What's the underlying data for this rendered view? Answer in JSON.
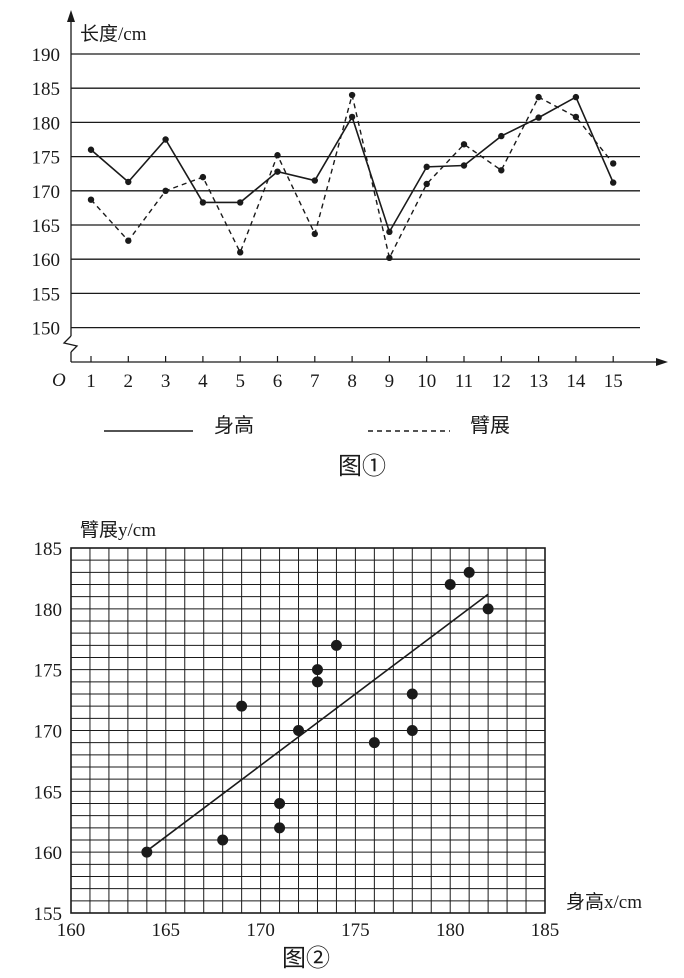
{
  "chart_data": [
    {
      "type": "line",
      "caption": "图①",
      "ylabel": "长度/cm",
      "origin_label": "O",
      "xlabel": "",
      "x": [
        1,
        2,
        3,
        4,
        5,
        6,
        7,
        8,
        9,
        10,
        11,
        12,
        13,
        14,
        15
      ],
      "ylim": [
        150,
        190
      ],
      "yticks": [
        150,
        155,
        160,
        165,
        170,
        175,
        180,
        185,
        190
      ],
      "axis_break": true,
      "grid": "horizontal",
      "legend_position": "bottom",
      "series": [
        {
          "name": "身高",
          "style": "solid",
          "values": [
            176,
            171.3,
            177.5,
            168.3,
            168.3,
            172.8,
            171.5,
            180.8,
            164,
            173.5,
            173.7,
            178,
            180.7,
            183.7,
            171.2
          ]
        },
        {
          "name": "臂展",
          "style": "dashed",
          "values": [
            168.7,
            162.7,
            170,
            172,
            161,
            175.2,
            163.7,
            184,
            160.2,
            171,
            176.8,
            173,
            183.7,
            180.8,
            174
          ]
        }
      ]
    },
    {
      "type": "scatter",
      "caption": "图②",
      "xlabel": "身高x/cm",
      "ylabel": "臂展y/cm",
      "xlim": [
        160,
        185
      ],
      "ylim": [
        155,
        185
      ],
      "xticks": [
        160,
        165,
        170,
        175,
        180,
        185
      ],
      "yticks": [
        155,
        160,
        165,
        170,
        175,
        180,
        185
      ],
      "grid": "on",
      "points": [
        {
          "x": 164,
          "y": 160
        },
        {
          "x": 168,
          "y": 161
        },
        {
          "x": 169,
          "y": 172
        },
        {
          "x": 171,
          "y": 164
        },
        {
          "x": 171,
          "y": 162
        },
        {
          "x": 172,
          "y": 170
        },
        {
          "x": 173,
          "y": 175
        },
        {
          "x": 173,
          "y": 174
        },
        {
          "x": 174,
          "y": 177
        },
        {
          "x": 176,
          "y": 169
        },
        {
          "x": 178,
          "y": 173
        },
        {
          "x": 178,
          "y": 170
        },
        {
          "x": 180,
          "y": 182
        },
        {
          "x": 181,
          "y": 183
        },
        {
          "x": 182,
          "y": 180
        }
      ],
      "fit_line": {
        "from": {
          "x": 164,
          "y": 160.1
        },
        "to": {
          "x": 182,
          "y": 181.2
        }
      }
    }
  ]
}
